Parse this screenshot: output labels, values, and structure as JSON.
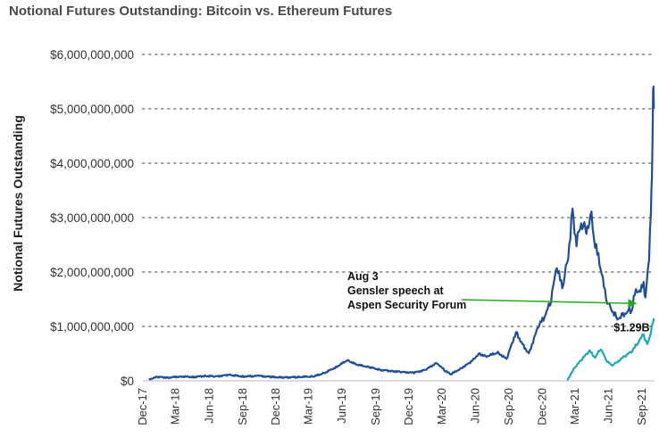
{
  "chart_data": {
    "type": "line",
    "title": "Notional Futures Outstanding: Bitcoin vs. Ethereum Futures",
    "ylabel": "Notional Futures Outstanding",
    "xlabel": "",
    "ylim": [
      0,
      6000000000
    ],
    "yticks": [
      0,
      1000000000,
      2000000000,
      3000000000,
      4000000000,
      5000000000,
      6000000000
    ],
    "ytick_labels": [
      "$0",
      "$1,000,000,000",
      "$2,000,000,000",
      "$3,000,000,000",
      "$4,000,000,000",
      "$5,000,000,000",
      "$6,000,000,000"
    ],
    "x_start": "2017-12-01",
    "x_end": "2021-10-05",
    "xtick_labels": [
      "Dec-17",
      "Mar-18",
      "Jun-18",
      "Sep-18",
      "Dec-18",
      "Mar-19",
      "Jun-19",
      "Sep-19",
      "Dec-19",
      "Mar-20",
      "Jun-20",
      "Sep-20",
      "Dec-20",
      "Mar-21",
      "Jun-21",
      "Sep-21"
    ],
    "xtick_dates": [
      "2017-12-01",
      "2018-03-01",
      "2018-06-01",
      "2018-09-01",
      "2018-12-01",
      "2019-03-01",
      "2019-06-01",
      "2019-09-01",
      "2019-12-01",
      "2020-03-01",
      "2020-06-01",
      "2020-09-01",
      "2020-12-01",
      "2021-03-01",
      "2021-06-01",
      "2021-09-01"
    ],
    "grid": "horizontal dotted",
    "series": [
      {
        "color": "#1f4e9a",
        "points": [
          [
            "2017-12-18",
            30000000
          ],
          [
            "2018-01-10",
            70000000
          ],
          [
            "2018-02-10",
            60000000
          ],
          [
            "2018-03-15",
            80000000
          ],
          [
            "2018-04-20",
            70000000
          ],
          [
            "2018-05-20",
            90000000
          ],
          [
            "2018-06-20",
            80000000
          ],
          [
            "2018-07-25",
            110000000
          ],
          [
            "2018-09-01",
            80000000
          ],
          [
            "2018-10-15",
            90000000
          ],
          [
            "2018-11-20",
            70000000
          ],
          [
            "2018-12-20",
            60000000
          ],
          [
            "2019-02-01",
            70000000
          ],
          [
            "2019-03-15",
            80000000
          ],
          [
            "2019-04-15",
            150000000
          ],
          [
            "2019-05-15",
            250000000
          ],
          [
            "2019-06-15",
            380000000
          ],
          [
            "2019-07-10",
            300000000
          ],
          [
            "2019-08-15",
            250000000
          ],
          [
            "2019-09-15",
            200000000
          ],
          [
            "2019-10-15",
            180000000
          ],
          [
            "2019-11-15",
            160000000
          ],
          [
            "2019-12-15",
            150000000
          ],
          [
            "2020-01-15",
            200000000
          ],
          [
            "2020-02-15",
            330000000
          ],
          [
            "2020-03-10",
            180000000
          ],
          [
            "2020-03-25",
            120000000
          ],
          [
            "2020-04-20",
            220000000
          ],
          [
            "2020-05-20",
            350000000
          ],
          [
            "2020-06-10",
            500000000
          ],
          [
            "2020-07-01",
            450000000
          ],
          [
            "2020-08-01",
            520000000
          ],
          [
            "2020-08-25",
            400000000
          ],
          [
            "2020-09-20",
            900000000
          ],
          [
            "2020-10-05",
            700000000
          ],
          [
            "2020-10-25",
            500000000
          ],
          [
            "2020-11-20",
            1000000000
          ],
          [
            "2020-12-10",
            1200000000
          ],
          [
            "2020-12-25",
            1500000000
          ],
          [
            "2021-01-10",
            2100000000
          ],
          [
            "2021-01-25",
            1700000000
          ],
          [
            "2021-02-10",
            2300000000
          ],
          [
            "2021-02-22",
            3100000000
          ],
          [
            "2021-03-05",
            2500000000
          ],
          [
            "2021-03-15",
            2900000000
          ],
          [
            "2021-04-01",
            2800000000
          ],
          [
            "2021-04-15",
            3000000000
          ],
          [
            "2021-04-25",
            2500000000
          ],
          [
            "2021-05-10",
            2100000000
          ],
          [
            "2021-05-25",
            1500000000
          ],
          [
            "2021-06-10",
            1300000000
          ],
          [
            "2021-06-25",
            1150000000
          ],
          [
            "2021-07-10",
            1200000000
          ],
          [
            "2021-07-25",
            1300000000
          ],
          [
            "2021-08-03",
            1290000000
          ],
          [
            "2021-08-15",
            1700000000
          ],
          [
            "2021-08-25",
            1600000000
          ],
          [
            "2021-09-05",
            1800000000
          ],
          [
            "2021-09-10",
            1500000000
          ],
          [
            "2021-09-20",
            2300000000
          ],
          [
            "2021-09-25",
            3200000000
          ],
          [
            "2021-09-28",
            3600000000
          ],
          [
            "2021-10-01",
            5400000000
          ],
          [
            "2021-10-03",
            5000000000
          ]
        ]
      },
      {
        "color": "#1aa9b8",
        "points": [
          [
            "2021-02-08",
            20000000
          ],
          [
            "2021-03-01",
            250000000
          ],
          [
            "2021-03-20",
            400000000
          ],
          [
            "2021-04-10",
            550000000
          ],
          [
            "2021-04-25",
            420000000
          ],
          [
            "2021-05-10",
            600000000
          ],
          [
            "2021-05-25",
            380000000
          ],
          [
            "2021-06-10",
            280000000
          ],
          [
            "2021-06-25",
            350000000
          ],
          [
            "2021-07-15",
            450000000
          ],
          [
            "2021-08-05",
            550000000
          ],
          [
            "2021-08-20",
            700000000
          ],
          [
            "2021-09-05",
            850000000
          ],
          [
            "2021-09-15",
            650000000
          ],
          [
            "2021-09-25",
            900000000
          ],
          [
            "2021-10-03",
            1150000000
          ]
        ]
      }
    ],
    "annotations": {
      "event": {
        "lines": [
          "Aug 3",
          "Gensler speech at",
          "Aspen Security Forum"
        ],
        "arrow_color": "#22aa22",
        "target": [
          "2021-08-03",
          1290000000
        ]
      },
      "value_label": {
        "text": "$1.29B",
        "at": [
          "2021-08-03",
          1290000000
        ]
      }
    }
  }
}
